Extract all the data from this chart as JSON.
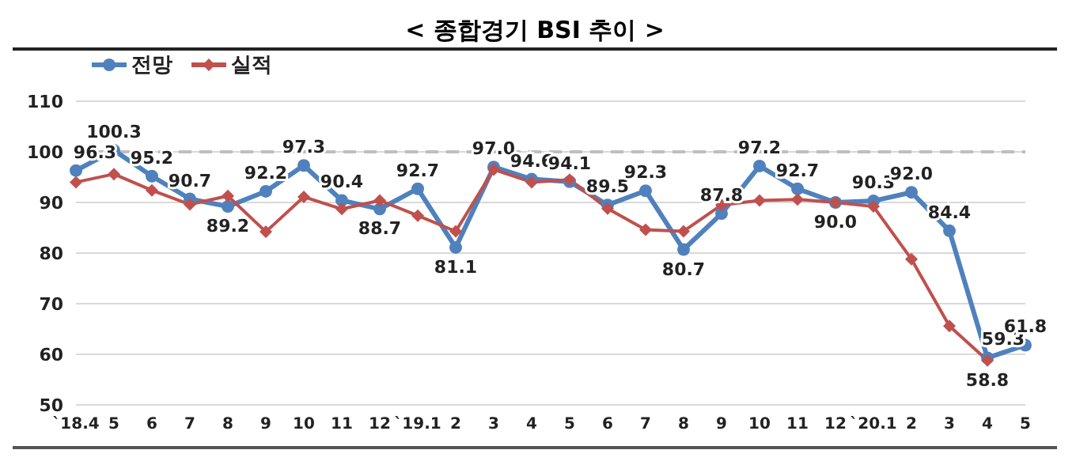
{
  "chart_data": {
    "type": "line",
    "title": "< 종합경기 BSI 추이 >",
    "categories": [
      "`18.4",
      "5",
      "6",
      "7",
      "8",
      "9",
      "10",
      "11",
      "12",
      "`19.1",
      "2",
      "3",
      "4",
      "5",
      "6",
      "7",
      "8",
      "9",
      "10",
      "11",
      "12",
      "`20.1",
      "2",
      "3",
      "4",
      "5"
    ],
    "series": [
      {
        "name": "전망",
        "color": "#4f81bd",
        "marker": "circle",
        "values": [
          96.3,
          100.3,
          95.2,
          90.7,
          89.2,
          92.2,
          97.3,
          90.4,
          88.7,
          92.7,
          81.1,
          97.0,
          94.6,
          94.1,
          89.5,
          92.3,
          80.7,
          87.8,
          97.2,
          92.7,
          90.0,
          90.3,
          92.0,
          84.4,
          59.3,
          61.8
        ],
        "value_labels": [
          "96.3",
          "100.3",
          "95.2",
          "90.7",
          "89.2",
          "92.2",
          "97.3",
          "90.4",
          "88.7",
          "92.7",
          "81.1",
          "97.0",
          "94.6",
          "94.1",
          "89.5",
          "92.3",
          "80.7",
          "87.8",
          "97.2",
          "92.7",
          "90.0",
          "90.3",
          "92.0",
          "84.4",
          "59.3",
          "61.8"
        ]
      },
      {
        "name": "실적",
        "color": "#c0504d",
        "marker": "diamond",
        "values": [
          94.0,
          95.6,
          92.4,
          89.6,
          91.3,
          84.2,
          91.1,
          88.7,
          90.4,
          87.4,
          84.3,
          96.5,
          94.0,
          94.5,
          88.8,
          84.6,
          84.3,
          89.5,
          90.4,
          90.6,
          90.0,
          89.2,
          78.8,
          65.6,
          58.8,
          null
        ],
        "value_labels": [
          null,
          null,
          null,
          null,
          null,
          null,
          null,
          null,
          null,
          null,
          null,
          null,
          null,
          null,
          null,
          null,
          null,
          null,
          null,
          null,
          null,
          null,
          null,
          null,
          "58.8",
          null
        ]
      }
    ],
    "ylim": [
      50,
      110
    ],
    "yticks": [
      50,
      60,
      70,
      80,
      90,
      100,
      110
    ],
    "grid": "y",
    "legend": "top left",
    "ref_lines": [
      {
        "axis": "y",
        "value": 100,
        "color": "#bfbfbf",
        "line_style": "dashed"
      }
    ]
  }
}
